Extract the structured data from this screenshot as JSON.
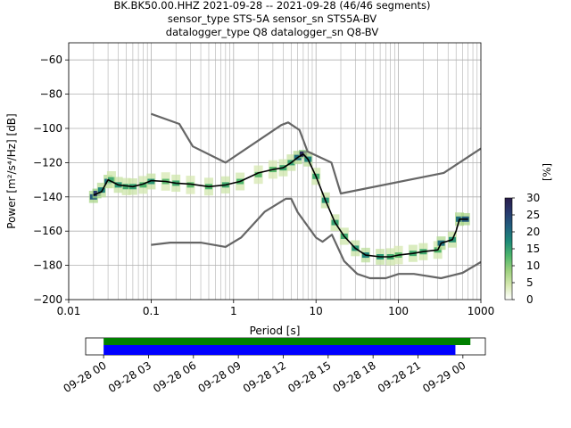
{
  "chart_data": {
    "type": "heatmap",
    "title": {
      "line1": "BK.BK50.00.HHZ   2021-09-28 -- 2021-09-28  (46/46 segments)",
      "line2": "sensor_type STS-5A sensor_sn STS5A-BV",
      "line3": "datalogger_type Q8 datalogger_sn Q8-BV"
    },
    "xlabel": "Period [s]",
    "ylabel": "Power [m²/s⁴/Hz] [dB]",
    "x_scale": "log",
    "xlim": [
      0.01,
      1000
    ],
    "ylim": [
      -200,
      -50
    ],
    "x_ticks": [
      {
        "value": 0.01,
        "label": "0.01"
      },
      {
        "value": 0.1,
        "label": "0.1"
      },
      {
        "value": 1,
        "label": "1"
      },
      {
        "value": 10,
        "label": "10"
      },
      {
        "value": 100,
        "label": "100"
      },
      {
        "value": 1000,
        "label": "1000"
      }
    ],
    "y_ticks": [
      {
        "value": -60,
        "label": "−60"
      },
      {
        "value": -80,
        "label": "−80"
      },
      {
        "value": -100,
        "label": "−100"
      },
      {
        "value": -120,
        "label": "−120"
      },
      {
        "value": -140,
        "label": "−140"
      },
      {
        "value": -160,
        "label": "−160"
      },
      {
        "value": -180,
        "label": "−180"
      },
      {
        "value": -200,
        "label": "−200"
      }
    ],
    "grid": true,
    "colorbar": {
      "label": "[%]",
      "range": [
        0,
        30
      ],
      "ticks": [
        {
          "value": 0,
          "label": "0"
        },
        {
          "value": 5,
          "label": "5"
        },
        {
          "value": 10,
          "label": "10"
        },
        {
          "value": 15,
          "label": "15"
        },
        {
          "value": 20,
          "label": "20"
        },
        {
          "value": 25,
          "label": "25"
        },
        {
          "value": 30,
          "label": "30"
        }
      ],
      "colormap_stops": [
        "#ffffff",
        "#d6e8b0",
        "#9dd07e",
        "#4fb66c",
        "#1e8a78",
        "#22607e",
        "#283a6e",
        "#2a1d4a"
      ]
    },
    "series": [
      {
        "role": "new-high-noise-model",
        "color": "#666666",
        "x": [
          0.1,
          0.22,
          0.32,
          0.8,
          3.8,
          4.6,
          6.3,
          7.9,
          15.4,
          20,
          354.8,
          1000
        ],
        "y": [
          -91.5,
          -97.4,
          -110.5,
          -120,
          -98,
          -96.5,
          -101,
          -113.5,
          -120,
          -138,
          -126,
          -111.7
        ]
      },
      {
        "role": "new-low-noise-model",
        "color": "#666666",
        "x": [
          0.1,
          0.17,
          0.4,
          0.8,
          1.24,
          2.4,
          4.3,
          5.0,
          6.0,
          10.0,
          12.0,
          15.6,
          21.9,
          31.6,
          45,
          70,
          101,
          154,
          328,
          600,
          1000
        ],
        "y": [
          -168,
          -166.7,
          -166.7,
          -169.2,
          -163.7,
          -148.6,
          -141.1,
          -141.1,
          -149,
          -163.8,
          -166.2,
          -162.1,
          -177.5,
          -185,
          -187.5,
          -187.5,
          -185,
          -185,
          -187.5,
          -184.4,
          -178
        ]
      },
      {
        "role": "mode",
        "color": "#000000",
        "x": [
          0.02,
          0.025,
          0.03,
          0.04,
          0.06,
          0.08,
          0.1,
          0.15,
          0.2,
          0.3,
          0.5,
          0.8,
          1.2,
          2,
          3,
          4,
          5,
          6,
          7,
          8,
          10,
          13,
          17,
          22,
          30,
          40,
          60,
          80,
          100,
          150,
          200,
          300,
          330,
          450,
          500,
          550,
          700
        ],
        "y": [
          -139,
          -137,
          -130,
          -133,
          -134,
          -132.5,
          -130.5,
          -131,
          -132,
          -132.5,
          -134,
          -133,
          -131,
          -126,
          -124,
          -123,
          -120,
          -117,
          -115,
          -118,
          -128,
          -142,
          -155,
          -163,
          -170,
          -174,
          -175,
          -175,
          -174,
          -173,
          -172,
          -171,
          -167,
          -165,
          -160,
          -153,
          -153
        ]
      }
    ],
    "histogram_cells": [
      {
        "x": 0.02,
        "y": -140,
        "pct": 22
      },
      {
        "x": 0.022,
        "y": -138,
        "pct": 26
      },
      {
        "x": 0.025,
        "y": -136,
        "pct": 18
      },
      {
        "x": 0.03,
        "y": -131,
        "pct": 20
      },
      {
        "x": 0.033,
        "y": -130,
        "pct": 14
      },
      {
        "x": 0.04,
        "y": -133,
        "pct": 16
      },
      {
        "x": 0.05,
        "y": -134,
        "pct": 14
      },
      {
        "x": 0.06,
        "y": -134,
        "pct": 15
      },
      {
        "x": 0.08,
        "y": -133,
        "pct": 13
      },
      {
        "x": 0.1,
        "y": -131,
        "pct": 16
      },
      {
        "x": 0.15,
        "y": -131,
        "pct": 12
      },
      {
        "x": 0.2,
        "y": -132,
        "pct": 14
      },
      {
        "x": 0.3,
        "y": -133,
        "pct": 12
      },
      {
        "x": 0.5,
        "y": -134,
        "pct": 13
      },
      {
        "x": 0.8,
        "y": -133,
        "pct": 14
      },
      {
        "x": 1.2,
        "y": -131,
        "pct": 13
      },
      {
        "x": 2,
        "y": -127,
        "pct": 12
      },
      {
        "x": 3,
        "y": -124,
        "pct": 12
      },
      {
        "x": 4,
        "y": -123,
        "pct": 14
      },
      {
        "x": 5,
        "y": -120,
        "pct": 15
      },
      {
        "x": 6,
        "y": -117,
        "pct": 20
      },
      {
        "x": 7,
        "y": -115,
        "pct": 28
      },
      {
        "x": 8,
        "y": -118,
        "pct": 18
      },
      {
        "x": 10,
        "y": -128,
        "pct": 14
      },
      {
        "x": 13,
        "y": -142,
        "pct": 16
      },
      {
        "x": 17,
        "y": -155,
        "pct": 15
      },
      {
        "x": 22,
        "y": -163,
        "pct": 14
      },
      {
        "x": 30,
        "y": -170,
        "pct": 16
      },
      {
        "x": 40,
        "y": -174,
        "pct": 18
      },
      {
        "x": 60,
        "y": -175,
        "pct": 16
      },
      {
        "x": 80,
        "y": -175,
        "pct": 14
      },
      {
        "x": 100,
        "y": -174,
        "pct": 12
      },
      {
        "x": 150,
        "y": -173,
        "pct": 14
      },
      {
        "x": 200,
        "y": -172,
        "pct": 14
      },
      {
        "x": 300,
        "y": -171,
        "pct": 13
      },
      {
        "x": 330,
        "y": -167,
        "pct": 20
      },
      {
        "x": 450,
        "y": -165,
        "pct": 16
      },
      {
        "x": 550,
        "y": -153,
        "pct": 20
      },
      {
        "x": 650,
        "y": -153,
        "pct": 22
      }
    ],
    "coverage": {
      "x_ticks": [
        "09-28 00",
        "09-28 03",
        "09-28 06",
        "09-28 09",
        "09-28 12",
        "09-28 15",
        "09-28 18",
        "09-28 21",
        "09-29 00"
      ],
      "green_bar": {
        "start_hours": 0,
        "end_hours": 24.5,
        "color": "#008000"
      },
      "blue_bar": {
        "start_hours": 0,
        "end_hours": 23.5,
        "color": "#0000ff"
      },
      "xlim_hours": [
        -1.2,
        25.5
      ]
    }
  }
}
